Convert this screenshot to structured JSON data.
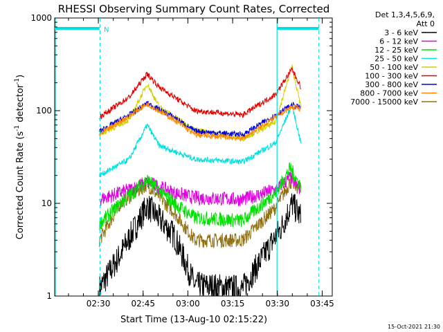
{
  "chart_data": {
    "type": "line",
    "title": "RHESSI Observing Summary Count Rates, Corrected",
    "xlabel": "Start Time (13-Aug-10 02:15:22)",
    "ylabel_main": "Corrected Count Rate (s",
    "ylabel_sup1": "-1",
    "ylabel_mid": " detector",
    "ylabel_sup2": "-1",
    "ylabel_end": ")",
    "y_scale": "log",
    "ylim": [
      1,
      1000
    ],
    "y_ticks": [
      {
        "value": 1,
        "label": "1"
      },
      {
        "value": 10,
        "label": "10"
      },
      {
        "value": 100,
        "label": "100"
      },
      {
        "value": 1000,
        "label": "1000"
      }
    ],
    "xlim_min": [
      0,
      93
    ],
    "x_ticks": [
      {
        "value": 14.63,
        "label": "02:30"
      },
      {
        "value": 29.63,
        "label": "02:45"
      },
      {
        "value": 44.63,
        "label": "03:00"
      },
      {
        "value": 59.63,
        "label": "03:15"
      },
      {
        "value": 74.63,
        "label": "03:30"
      },
      {
        "value": 89.63,
        "label": "03:45"
      }
    ],
    "legend_header": [
      "Det 1,3,4,5,6,9,",
      "Att 0"
    ],
    "legend_position": "right",
    "annotation_n": "N",
    "timestamp": "15-Oct-2021 21:30",
    "attenuator_bars": [
      [
        0,
        15
      ],
      [
        74.5,
        88.5
      ]
    ],
    "dashed_lines": [
      15.2,
      88.5
    ],
    "solid_line": 74.5,
    "series": [
      {
        "name": "3 - 6 keV",
        "color": "#000000",
        "key": [
          [
            15,
            1.2
          ],
          [
            22,
            2.8
          ],
          [
            31,
            9.5
          ],
          [
            40,
            4.5
          ],
          [
            47,
            1.3
          ],
          [
            63,
            1.2
          ],
          [
            76,
            5.5
          ],
          [
            79.5,
            10
          ],
          [
            82.5,
            7
          ]
        ]
      },
      {
        "name": "6 - 12 keV",
        "color": "#e000e0",
        "key": [
          [
            15,
            11
          ],
          [
            25,
            14
          ],
          [
            31,
            17
          ],
          [
            40,
            13
          ],
          [
            47,
            11.5
          ],
          [
            63,
            11
          ],
          [
            74,
            14
          ],
          [
            79,
            19
          ],
          [
            82.5,
            14
          ]
        ]
      },
      {
        "name": "12 - 25 keV",
        "color": "#00e000",
        "key": [
          [
            15,
            6
          ],
          [
            22,
            10
          ],
          [
            31,
            18
          ],
          [
            40,
            10
          ],
          [
            47,
            7
          ],
          [
            63,
            6.5
          ],
          [
            74,
            13
          ],
          [
            79,
            24
          ],
          [
            82.5,
            15
          ]
        ]
      },
      {
        "name": "25 - 50 keV",
        "color": "#00e0e0",
        "key": [
          [
            15,
            20
          ],
          [
            25,
            30
          ],
          [
            31,
            70
          ],
          [
            35,
            42
          ],
          [
            47,
            30
          ],
          [
            63,
            28
          ],
          [
            74,
            45
          ],
          [
            79.5,
            115
          ],
          [
            82.5,
            45
          ]
        ]
      },
      {
        "name": "50 - 100 keV",
        "color": "#d0d000",
        "key": [
          [
            15,
            55
          ],
          [
            25,
            80
          ],
          [
            31,
            195
          ],
          [
            35,
            110
          ],
          [
            47,
            62
          ],
          [
            63,
            50
          ],
          [
            74,
            75
          ],
          [
            79.5,
            300
          ],
          [
            82.5,
            110
          ]
        ]
      },
      {
        "name": "100 - 300 keV",
        "color": "#e00000",
        "key": [
          [
            15,
            85
          ],
          [
            25,
            140
          ],
          [
            31,
            250
          ],
          [
            35,
            180
          ],
          [
            47,
            100
          ],
          [
            63,
            90
          ],
          [
            74,
            150
          ],
          [
            79.5,
            280
          ],
          [
            82.5,
            180
          ]
        ]
      },
      {
        "name": "300 - 800 keV",
        "color": "#0000e0",
        "key": [
          [
            15,
            60
          ],
          [
            25,
            90
          ],
          [
            31,
            120
          ],
          [
            40,
            85
          ],
          [
            47,
            60
          ],
          [
            63,
            55
          ],
          [
            74,
            90
          ],
          [
            79.5,
            115
          ],
          [
            82.5,
            108
          ]
        ]
      },
      {
        "name": "800 - 7000 keV",
        "color": "#ff8800",
        "key": [
          [
            15,
            55
          ],
          [
            25,
            88
          ],
          [
            31,
            118
          ],
          [
            40,
            80
          ],
          [
            47,
            55
          ],
          [
            63,
            50
          ],
          [
            74,
            85
          ],
          [
            79.5,
            110
          ],
          [
            82.5,
            105
          ]
        ]
      },
      {
        "name": "7000 - 15000 keV",
        "color": "#907010",
        "key": [
          [
            15,
            4
          ],
          [
            22,
            10
          ],
          [
            31,
            16
          ],
          [
            40,
            8
          ],
          [
            47,
            4
          ],
          [
            63,
            4
          ],
          [
            74,
            9
          ],
          [
            79,
            17
          ],
          [
            82.5,
            14
          ]
        ]
      }
    ]
  }
}
